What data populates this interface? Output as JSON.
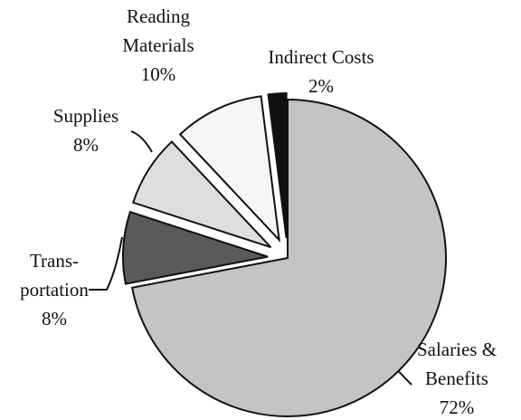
{
  "chart_data": {
    "type": "pie",
    "categories": [
      [
        "Salaries &",
        "Benefits"
      ],
      [
        "Trans-",
        "portation"
      ],
      [
        "Supplies"
      ],
      [
        "Reading",
        "Materials"
      ],
      [
        "Indirect Costs"
      ]
    ],
    "values": [
      72,
      8,
      8,
      10,
      2
    ],
    "value_labels": [
      "72%",
      "8%",
      "8%",
      "10%",
      "2%"
    ],
    "colors": [
      "#c4c4c4",
      "#5a5a5a",
      "#dedede",
      "#f6f6f6",
      "#111111"
    ]
  }
}
